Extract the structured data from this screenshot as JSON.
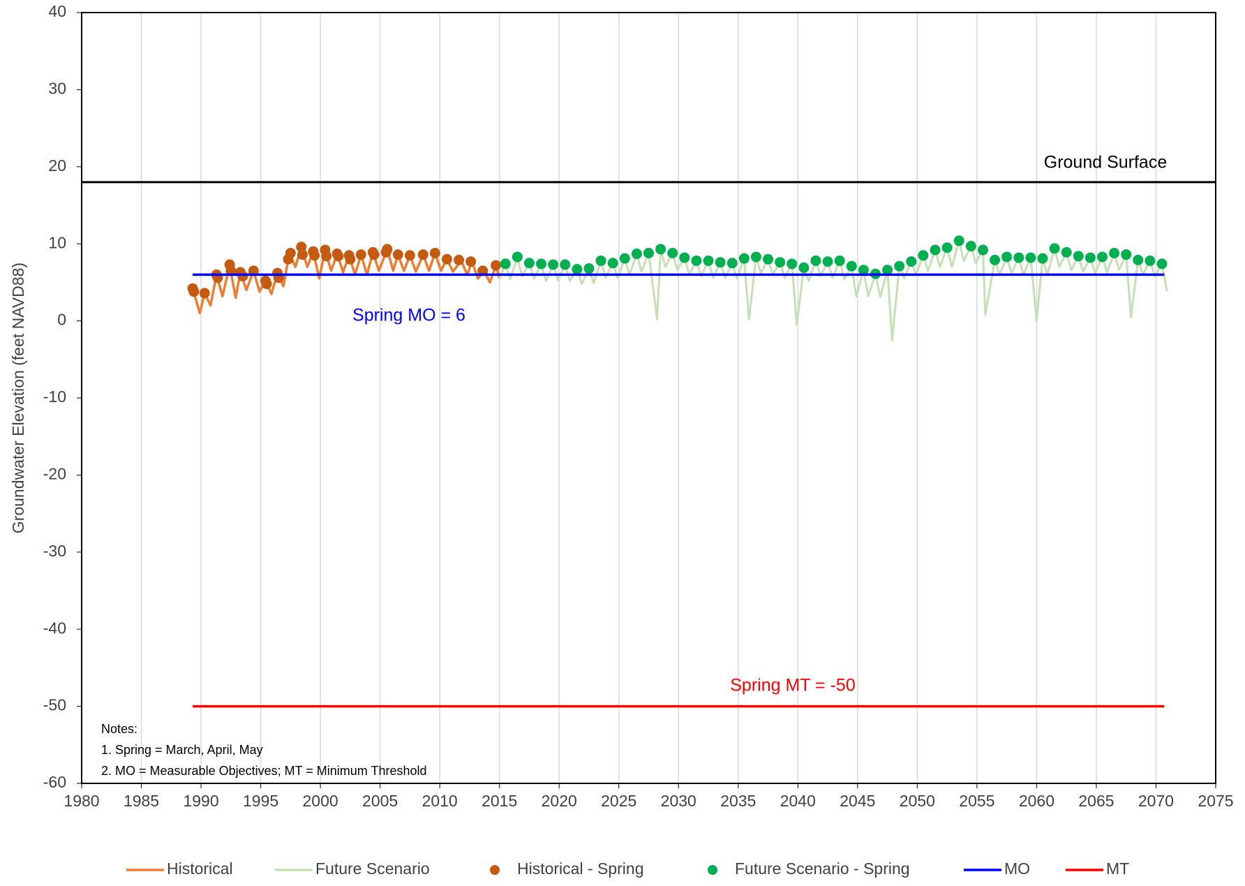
{
  "chart_data": {
    "type": "line",
    "y_label": "Groundwater Elevation (feet NAVD88)",
    "xlim": [
      1980,
      2075
    ],
    "xticks": [
      1980,
      1985,
      1990,
      1995,
      2000,
      2005,
      2010,
      2015,
      2020,
      2025,
      2030,
      2035,
      2040,
      2045,
      2050,
      2055,
      2060,
      2065,
      2070,
      2075
    ],
    "ylim": [
      -60,
      40
    ],
    "yticks": [
      -60,
      -50,
      -40,
      -30,
      -20,
      -10,
      0,
      10,
      20,
      30,
      40
    ],
    "grid": "x",
    "legend": "bottom",
    "reference_lines": [
      {
        "label": "Ground Surface",
        "value": 18,
        "color": "#000000"
      }
    ],
    "annotations": [
      "Spring MO = 6",
      "Spring MT = -50"
    ],
    "notes": [
      "Notes:",
      "1. Spring = March, April, May",
      "2. MO = Measurable Objectives;  MT = Minimum Threshold"
    ],
    "series": [
      {
        "name": "Historical",
        "type": "line",
        "color": "#ED7D31",
        "width": 3.5,
        "x": [
          1989.3,
          1989.9,
          1990.3,
          1990.8,
          1991.3,
          1991.8,
          1992.4,
          1992.9,
          1993.3,
          1993.8,
          1994.4,
          1994.9,
          1995.4,
          1995.9,
          1996.4,
          1996.9,
          1997.4,
          1997.9,
          1998.4,
          1998.9,
          1999.4,
          1999.9,
          2000.4,
          2000.9,
          2001.4,
          2001.9,
          2002.4,
          2002.9,
          2003.4,
          2003.9,
          2004.4,
          2004.9,
          2005.6,
          2006.1,
          2006.5,
          2007.0,
          2007.5,
          2008.0,
          2008.6,
          2009.1,
          2009.6,
          2010.1,
          2010.6,
          2011.1,
          2011.8,
          2012.3,
          2012.7,
          2013.2,
          2013.7,
          2014.2,
          2014.7,
          2015.0
        ],
        "y": [
          4.2,
          1.0,
          3.6,
          2.0,
          6.0,
          3.2,
          7.2,
          3.0,
          6.3,
          4.0,
          6.5,
          3.8,
          5.2,
          3.5,
          6.2,
          4.5,
          8.8,
          7.0,
          9.6,
          7.0,
          9.0,
          5.5,
          9.2,
          6.5,
          8.7,
          6.3,
          8.5,
          6.0,
          8.6,
          6.0,
          8.9,
          6.5,
          9.3,
          6.5,
          8.6,
          6.5,
          8.5,
          6.4,
          8.6,
          6.5,
          8.8,
          6.5,
          8.0,
          6.4,
          7.8,
          6.0,
          7.7,
          5.5,
          6.5,
          5.0,
          7.2,
          5.5
        ]
      },
      {
        "name": "Future Scenario",
        "type": "line",
        "color": "#C5E0B4",
        "width": 3,
        "x": [
          2015.0,
          2015.5,
          2015.9,
          2016.5,
          2016.9,
          2017.5,
          2017.9,
          2018.5,
          2018.9,
          2019.5,
          2019.9,
          2020.5,
          2020.9,
          2021.5,
          2021.9,
          2022.5,
          2022.9,
          2023.5,
          2023.9,
          2024.5,
          2024.9,
          2025.5,
          2025.9,
          2026.5,
          2026.9,
          2027.5,
          2028.2,
          2028.5,
          2028.9,
          2029.5,
          2029.9,
          2030.5,
          2030.9,
          2031.5,
          2031.9,
          2032.5,
          2032.9,
          2033.5,
          2033.9,
          2034.5,
          2034.9,
          2035.5,
          2035.9,
          2036.5,
          2036.9,
          2037.5,
          2037.9,
          2038.5,
          2038.9,
          2039.5,
          2039.9,
          2040.5,
          2040.9,
          2041.5,
          2041.9,
          2042.5,
          2042.9,
          2043.5,
          2043.9,
          2044.5,
          2044.9,
          2045.5,
          2045.9,
          2046.5,
          2046.9,
          2047.5,
          2047.9,
          2048.5,
          2048.9,
          2049.5,
          2049.9,
          2050.5,
          2050.9,
          2051.5,
          2051.9,
          2052.5,
          2052.9,
          2053.5,
          2053.9,
          2054.5,
          2054.9,
          2055.5,
          2055.7,
          2056.5,
          2056.9,
          2057.5,
          2057.9,
          2058.5,
          2058.9,
          2059.5,
          2060.0,
          2060.5,
          2060.9,
          2061.5,
          2061.9,
          2062.5,
          2062.9,
          2063.5,
          2063.9,
          2064.5,
          2064.9,
          2065.5,
          2065.9,
          2066.5,
          2066.9,
          2067.5,
          2067.9,
          2068.5,
          2068.9,
          2069.5,
          2069.9,
          2070.5,
          2070.9,
          2071.0
        ],
        "y": [
          5.5,
          7.4,
          5.4,
          8.3,
          5.8,
          7.5,
          5.5,
          7.4,
          5.2,
          7.3,
          5.3,
          7.3,
          5.2,
          6.7,
          4.8,
          6.8,
          4.9,
          7.8,
          5.6,
          7.5,
          5.6,
          8.1,
          6.0,
          8.7,
          6.4,
          8.8,
          0.2,
          9.3,
          7.0,
          8.8,
          6.6,
          8.2,
          6.0,
          7.8,
          5.8,
          7.8,
          5.6,
          7.6,
          5.6,
          7.5,
          5.5,
          8.1,
          0.2,
          8.3,
          6.2,
          8.0,
          6.0,
          7.6,
          5.6,
          7.4,
          -0.5,
          6.9,
          5.2,
          7.8,
          5.8,
          7.7,
          5.6,
          7.8,
          5.4,
          7.1,
          3.2,
          6.6,
          3.2,
          6.1,
          3.1,
          6.6,
          -2.5,
          7.1,
          5.5,
          7.7,
          6.0,
          8.5,
          6.5,
          9.2,
          7.0,
          9.5,
          7.0,
          10.4,
          7.8,
          9.7,
          7.5,
          9.2,
          0.8,
          7.9,
          6.0,
          8.3,
          6.2,
          8.2,
          6.0,
          8.2,
          0.0,
          8.1,
          6.0,
          9.4,
          7.0,
          8.9,
          6.6,
          8.4,
          6.4,
          8.2,
          6.2,
          8.3,
          6.3,
          8.8,
          6.6,
          8.6,
          0.5,
          7.9,
          6.0,
          7.8,
          5.8,
          7.4,
          4.0,
          3.9
        ]
      },
      {
        "name": "Historical - Spring",
        "type": "scatter",
        "color": "#C55A11",
        "x": [
          1989.3,
          1989.4,
          1990.3,
          1991.3,
          1991.4,
          1992.4,
          1992.5,
          1993.3,
          1993.5,
          1994.4,
          1995.4,
          1995.5,
          1996.4,
          1996.5,
          1997.3,
          1997.5,
          1998.4,
          1998.5,
          1999.4,
          1999.5,
          2000.4,
          2000.5,
          2001.4,
          2001.5,
          2002.4,
          2002.5,
          2003.4,
          2004.4,
          2004.5,
          2005.5,
          2005.6,
          2006.5,
          2007.5,
          2008.6,
          2009.6,
          2010.6,
          2011.6,
          2012.6,
          2013.6,
          2014.7
        ],
        "y": [
          4.2,
          3.8,
          3.6,
          6.0,
          5.6,
          7.3,
          6.5,
          6.3,
          5.8,
          6.5,
          5.2,
          4.8,
          6.2,
          5.6,
          8.0,
          8.8,
          9.6,
          8.6,
          9.0,
          8.5,
          9.2,
          8.4,
          8.7,
          8.4,
          8.5,
          8.0,
          8.6,
          8.9,
          8.6,
          8.9,
          9.3,
          8.6,
          8.5,
          8.6,
          8.8,
          8.0,
          7.9,
          7.7,
          6.5,
          7.2
        ]
      },
      {
        "name": "Future Scenario - Spring",
        "type": "scatter",
        "color": "#00B050",
        "x": [
          2015.5,
          2016.5,
          2017.5,
          2018.5,
          2019.5,
          2020.5,
          2021.5,
          2022.5,
          2023.5,
          2024.5,
          2025.5,
          2026.5,
          2027.5,
          2028.5,
          2029.5,
          2030.5,
          2031.5,
          2032.5,
          2033.5,
          2034.5,
          2035.5,
          2036.5,
          2037.5,
          2038.5,
          2039.5,
          2040.5,
          2041.5,
          2042.5,
          2043.5,
          2044.5,
          2045.5,
          2046.5,
          2047.5,
          2048.5,
          2049.5,
          2050.5,
          2051.5,
          2052.5,
          2053.5,
          2054.5,
          2055.5,
          2056.5,
          2057.5,
          2058.5,
          2059.5,
          2060.5,
          2061.5,
          2062.5,
          2063.5,
          2064.5,
          2065.5,
          2066.5,
          2067.5,
          2068.5,
          2069.5,
          2070.5
        ],
        "y": [
          7.4,
          8.3,
          7.5,
          7.4,
          7.3,
          7.3,
          6.7,
          6.8,
          7.8,
          7.5,
          8.1,
          8.7,
          8.8,
          9.3,
          8.8,
          8.2,
          7.8,
          7.8,
          7.6,
          7.5,
          8.1,
          8.3,
          8.0,
          7.6,
          7.4,
          6.9,
          7.8,
          7.7,
          7.8,
          7.1,
          6.6,
          6.1,
          6.6,
          7.1,
          7.7,
          8.5,
          9.2,
          9.5,
          10.4,
          9.7,
          9.2,
          7.9,
          8.3,
          8.2,
          8.2,
          8.1,
          9.4,
          8.9,
          8.4,
          8.2,
          8.3,
          8.8,
          8.6,
          7.9,
          7.8,
          7.4
        ]
      },
      {
        "name": "MO",
        "type": "line",
        "color": "#0000FF",
        "width": 3.5,
        "x": [
          1989.3,
          2070.7
        ],
        "y": [
          6,
          6
        ]
      },
      {
        "name": "MT",
        "type": "line",
        "color": "#FF0000",
        "width": 3.5,
        "x": [
          1989.3,
          2070.7
        ],
        "y": [
          -50,
          -50
        ]
      }
    ]
  }
}
